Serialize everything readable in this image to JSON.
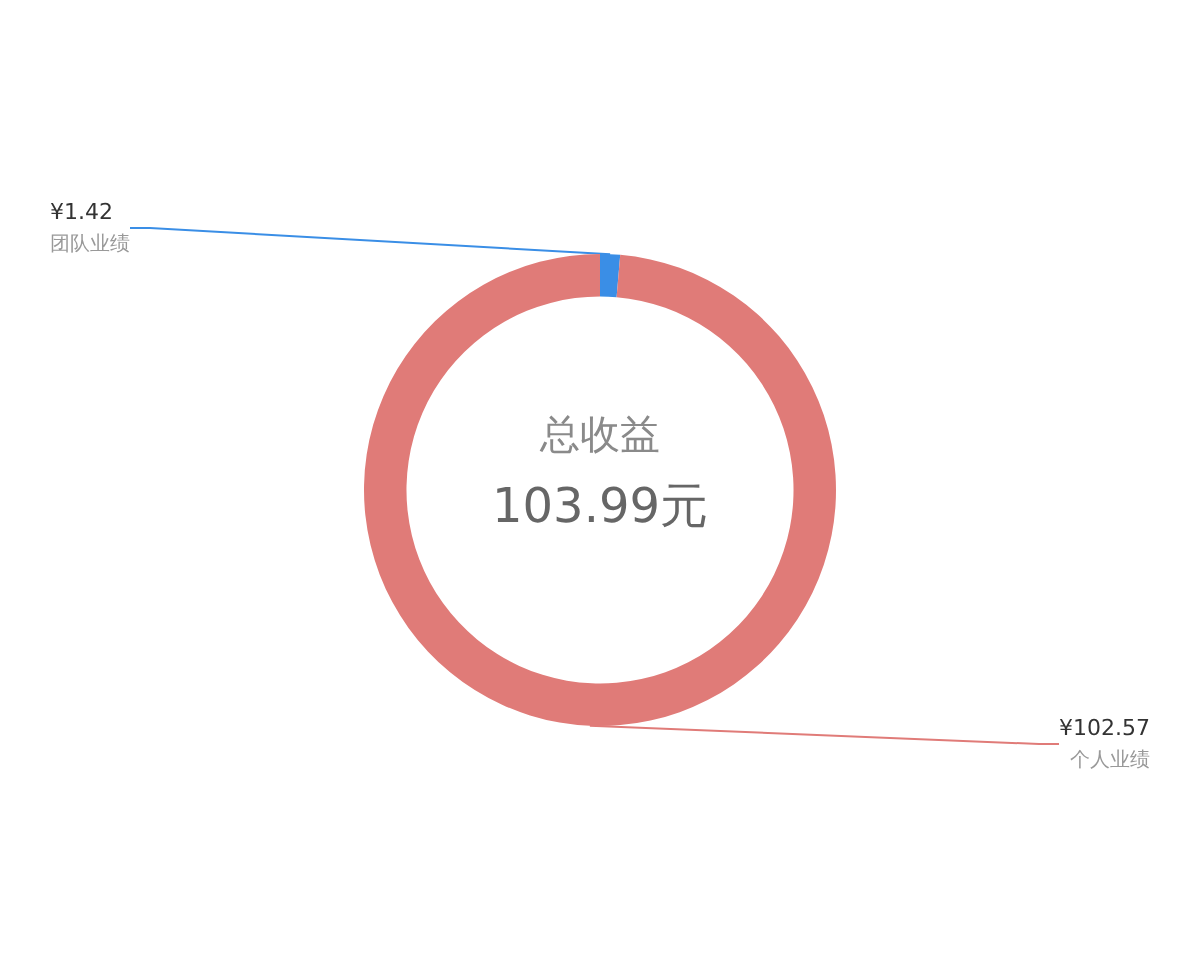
{
  "chart_data": {
    "type": "donut",
    "title": "总收益",
    "subtitle": "103.99元",
    "categories": [
      "团队业绩",
      "个人业绩"
    ],
    "values": [
      1.42,
      102.57
    ],
    "colors": [
      "#3a8ee6",
      "#e07b78"
    ],
    "value_labels": [
      "¥1.42",
      "¥102.57"
    ],
    "legend": false
  }
}
